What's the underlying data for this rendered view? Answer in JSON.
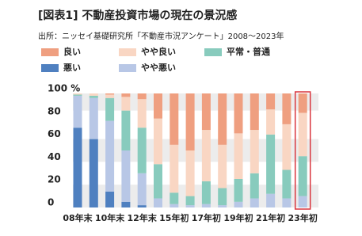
{
  "chart_data": {
    "type": "bar",
    "stacked": true,
    "title": "[図表1] 不動産投資市場の現在の景況感",
    "subtitle": "出所：ニッセイ基礎研究所「不動産市況アンケート」2008～2023年",
    "categories": [
      "08年末",
      null,
      "10年末",
      null,
      "12年末",
      null,
      "15年初",
      null,
      "17年初",
      null,
      "19年初",
      null,
      "21年初",
      null,
      "23年初"
    ],
    "series": [
      {
        "name": "良い",
        "color": "#ef9f80",
        "values": [
          0,
          0,
          1,
          3,
          5,
          22,
          45,
          50,
          32,
          45,
          35,
          32,
          14,
          27,
          17
        ]
      },
      {
        "name": "やや良い",
        "color": "#f9d6c3",
        "values": [
          1,
          2,
          3,
          12,
          25,
          40,
          42,
          40,
          45,
          38,
          40,
          38,
          22,
          40,
          38
        ]
      },
      {
        "name": "平常・普通",
        "color": "#88cbbd",
        "values": [
          1,
          2,
          20,
          35,
          40,
          30,
          10,
          8,
          20,
          15,
          20,
          22,
          52,
          25,
          35
        ]
      },
      {
        "name": "悪い",
        "color": "#4f80c0",
        "values": [
          70,
          60,
          14,
          5,
          2,
          0,
          0,
          0,
          0,
          0,
          0,
          0,
          0,
          0,
          0
        ]
      },
      {
        "name": "やや悪い",
        "color": "#b8c7e6",
        "values": [
          28,
          36,
          62,
          45,
          28,
          8,
          3,
          2,
          3,
          2,
          5,
          8,
          12,
          8,
          10
        ]
      }
    ],
    "ylim": [
      0,
      100
    ],
    "yticks": [
      0,
      20,
      40,
      60,
      80,
      {
        "value": 100,
        "label": "100 %"
      }
    ]
  }
}
